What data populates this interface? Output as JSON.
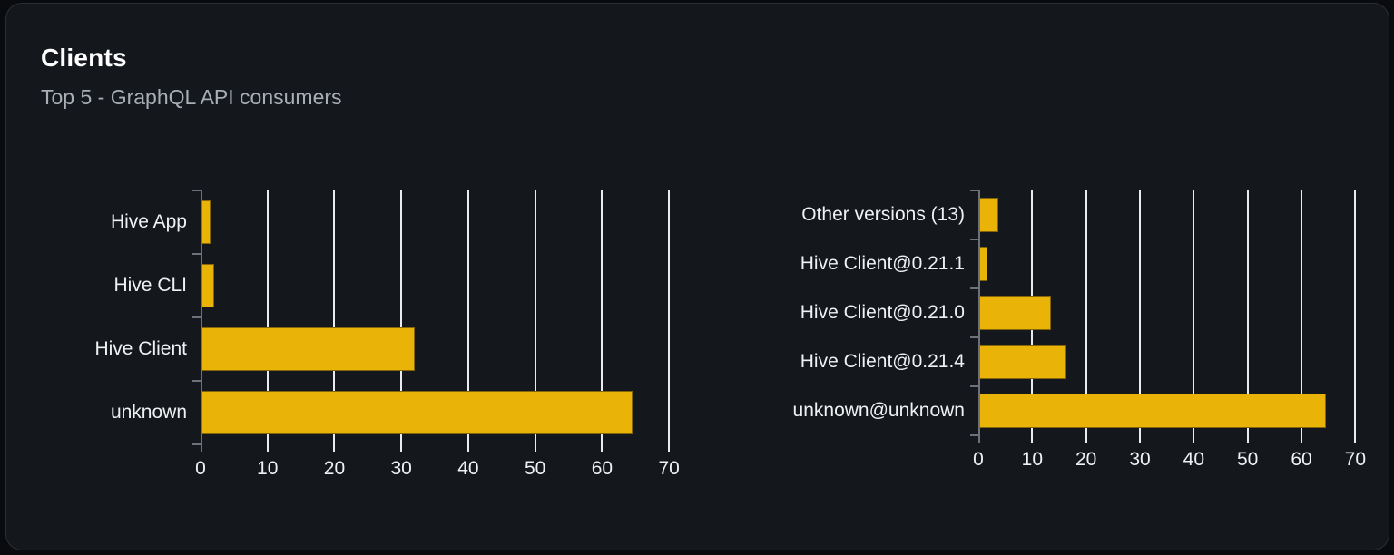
{
  "header": {
    "title": "Clients",
    "subtitle": "Top 5 - GraphQL API consumers"
  },
  "colors": {
    "card_background": "#14171c",
    "card_border": "#2b2e34",
    "bar_fill": "#eab308",
    "gridline": "#e8ebef",
    "axis": "#6e7278",
    "title_text": "#ffffff",
    "subtitle_text": "#a9aeb6",
    "label_text": "#f0f1f3"
  },
  "chart_data": [
    {
      "type": "bar",
      "orientation": "horizontal",
      "title": "",
      "categories": [
        "Hive App",
        "Hive CLI",
        "Hive Client",
        "unknown"
      ],
      "values": [
        1.5,
        2,
        32,
        64.5
      ],
      "xlim": [
        0,
        70
      ],
      "xticks": [
        0,
        10,
        20,
        30,
        40,
        50,
        60,
        70
      ],
      "grid": true,
      "legend": "none",
      "bar_color": "#eab308"
    },
    {
      "type": "bar",
      "orientation": "horizontal",
      "title": "",
      "categories": [
        "Other versions (13)",
        "Hive Client@0.21.1",
        "Hive Client@0.21.0",
        "Hive Client@0.21.4",
        "unknown@unknown"
      ],
      "values": [
        3.7,
        1.7,
        13.5,
        16.3,
        64.5
      ],
      "xlim": [
        0,
        70
      ],
      "xticks": [
        0,
        10,
        20,
        30,
        40,
        50,
        60,
        70
      ],
      "grid": true,
      "legend": "none",
      "bar_color": "#eab308"
    }
  ]
}
